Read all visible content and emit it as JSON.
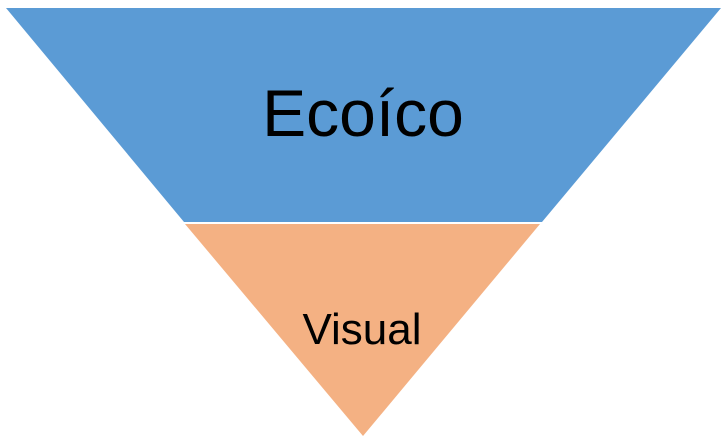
{
  "diagram": {
    "type": "inverted-pyramid",
    "layers": [
      {
        "label": "Ecoíco",
        "color": "#5B9BD5"
      },
      {
        "label": "Visual",
        "color": "#F4B183"
      }
    ],
    "background": "#FFFFFF"
  }
}
